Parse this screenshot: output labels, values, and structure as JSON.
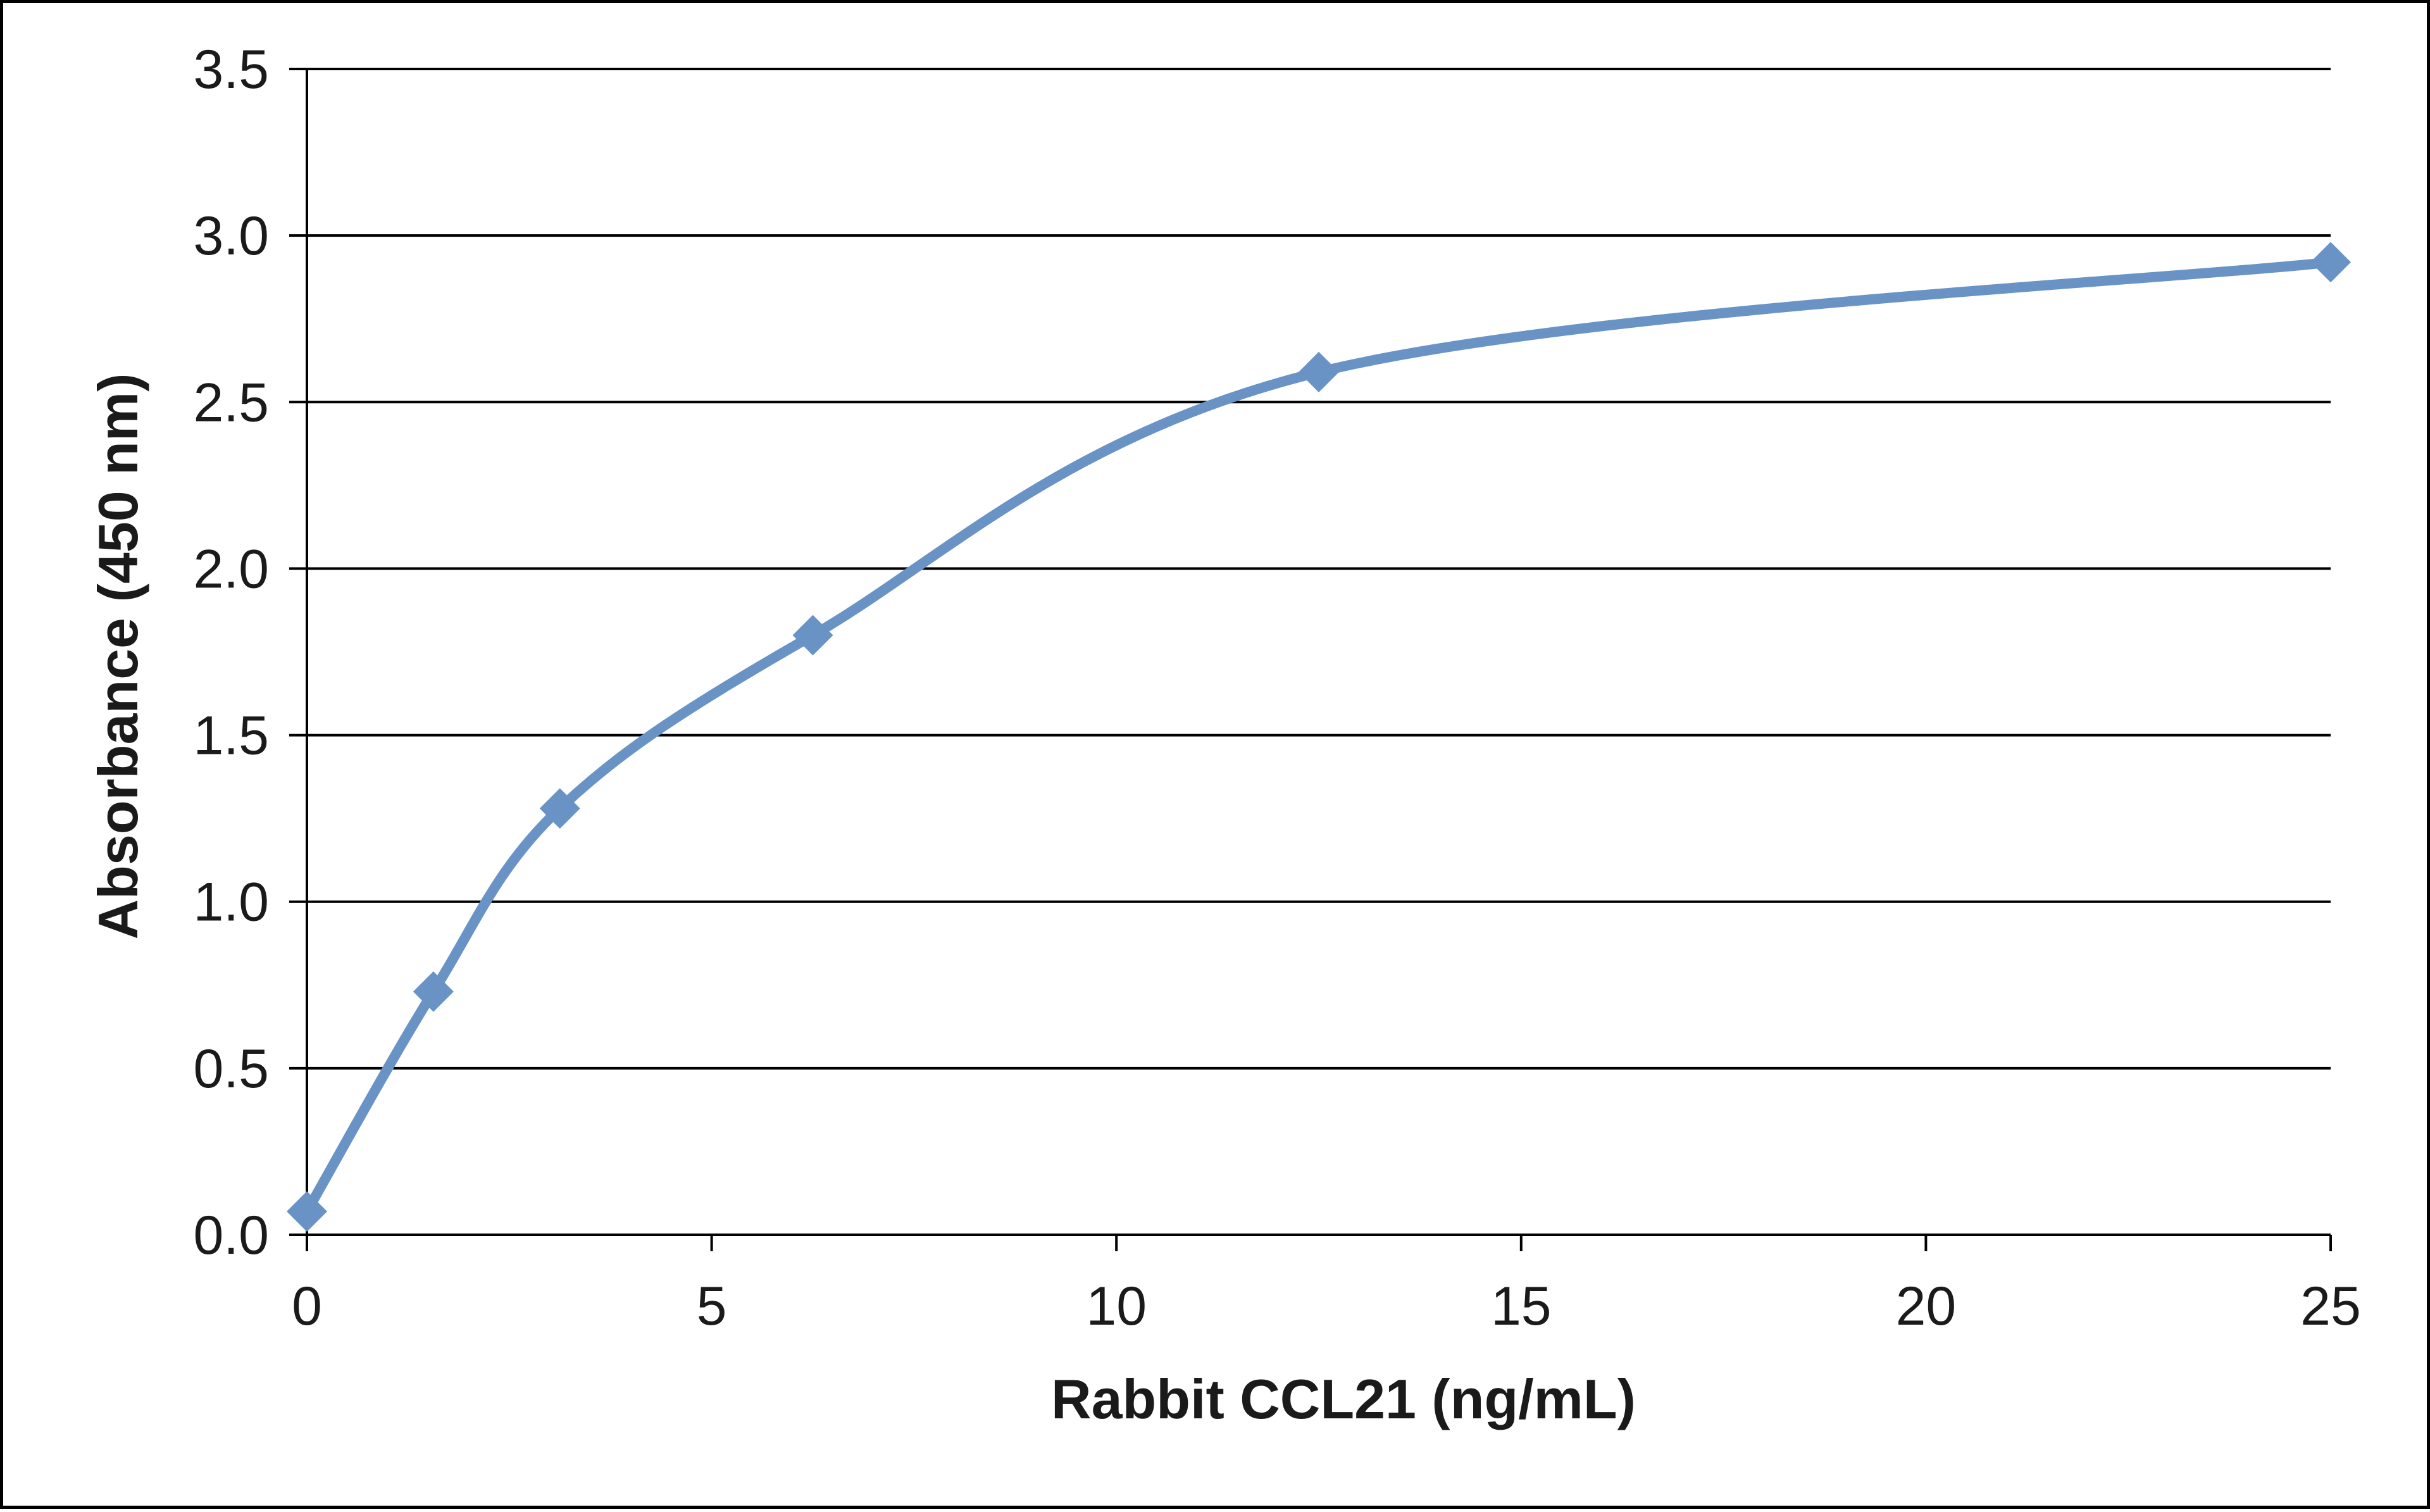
{
  "chart_data": {
    "type": "line",
    "title": "",
    "xlabel": "Rabbit CCL21  (ng/mL)",
    "ylabel": "Absorbance  (450  nm)",
    "xlim": [
      0,
      25
    ],
    "ylim": [
      0,
      3.5
    ],
    "x_ticks": [
      "0",
      "5",
      "10",
      "15",
      "20",
      "25"
    ],
    "y_ticks": [
      "0.0",
      "0.5",
      "1.0",
      "1.5",
      "2.0",
      "2.5",
      "3.0",
      "3.5"
    ],
    "grid": "horizontal",
    "legend": "none",
    "series": [
      {
        "color": "#6a93c5",
        "marker": "diamond",
        "smooth": true,
        "x": [
          0,
          1.5625,
          3.125,
          6.25,
          12.5,
          25
        ],
        "y": [
          0.07,
          0.73,
          1.28,
          1.8,
          2.59,
          2.92
        ]
      }
    ]
  }
}
